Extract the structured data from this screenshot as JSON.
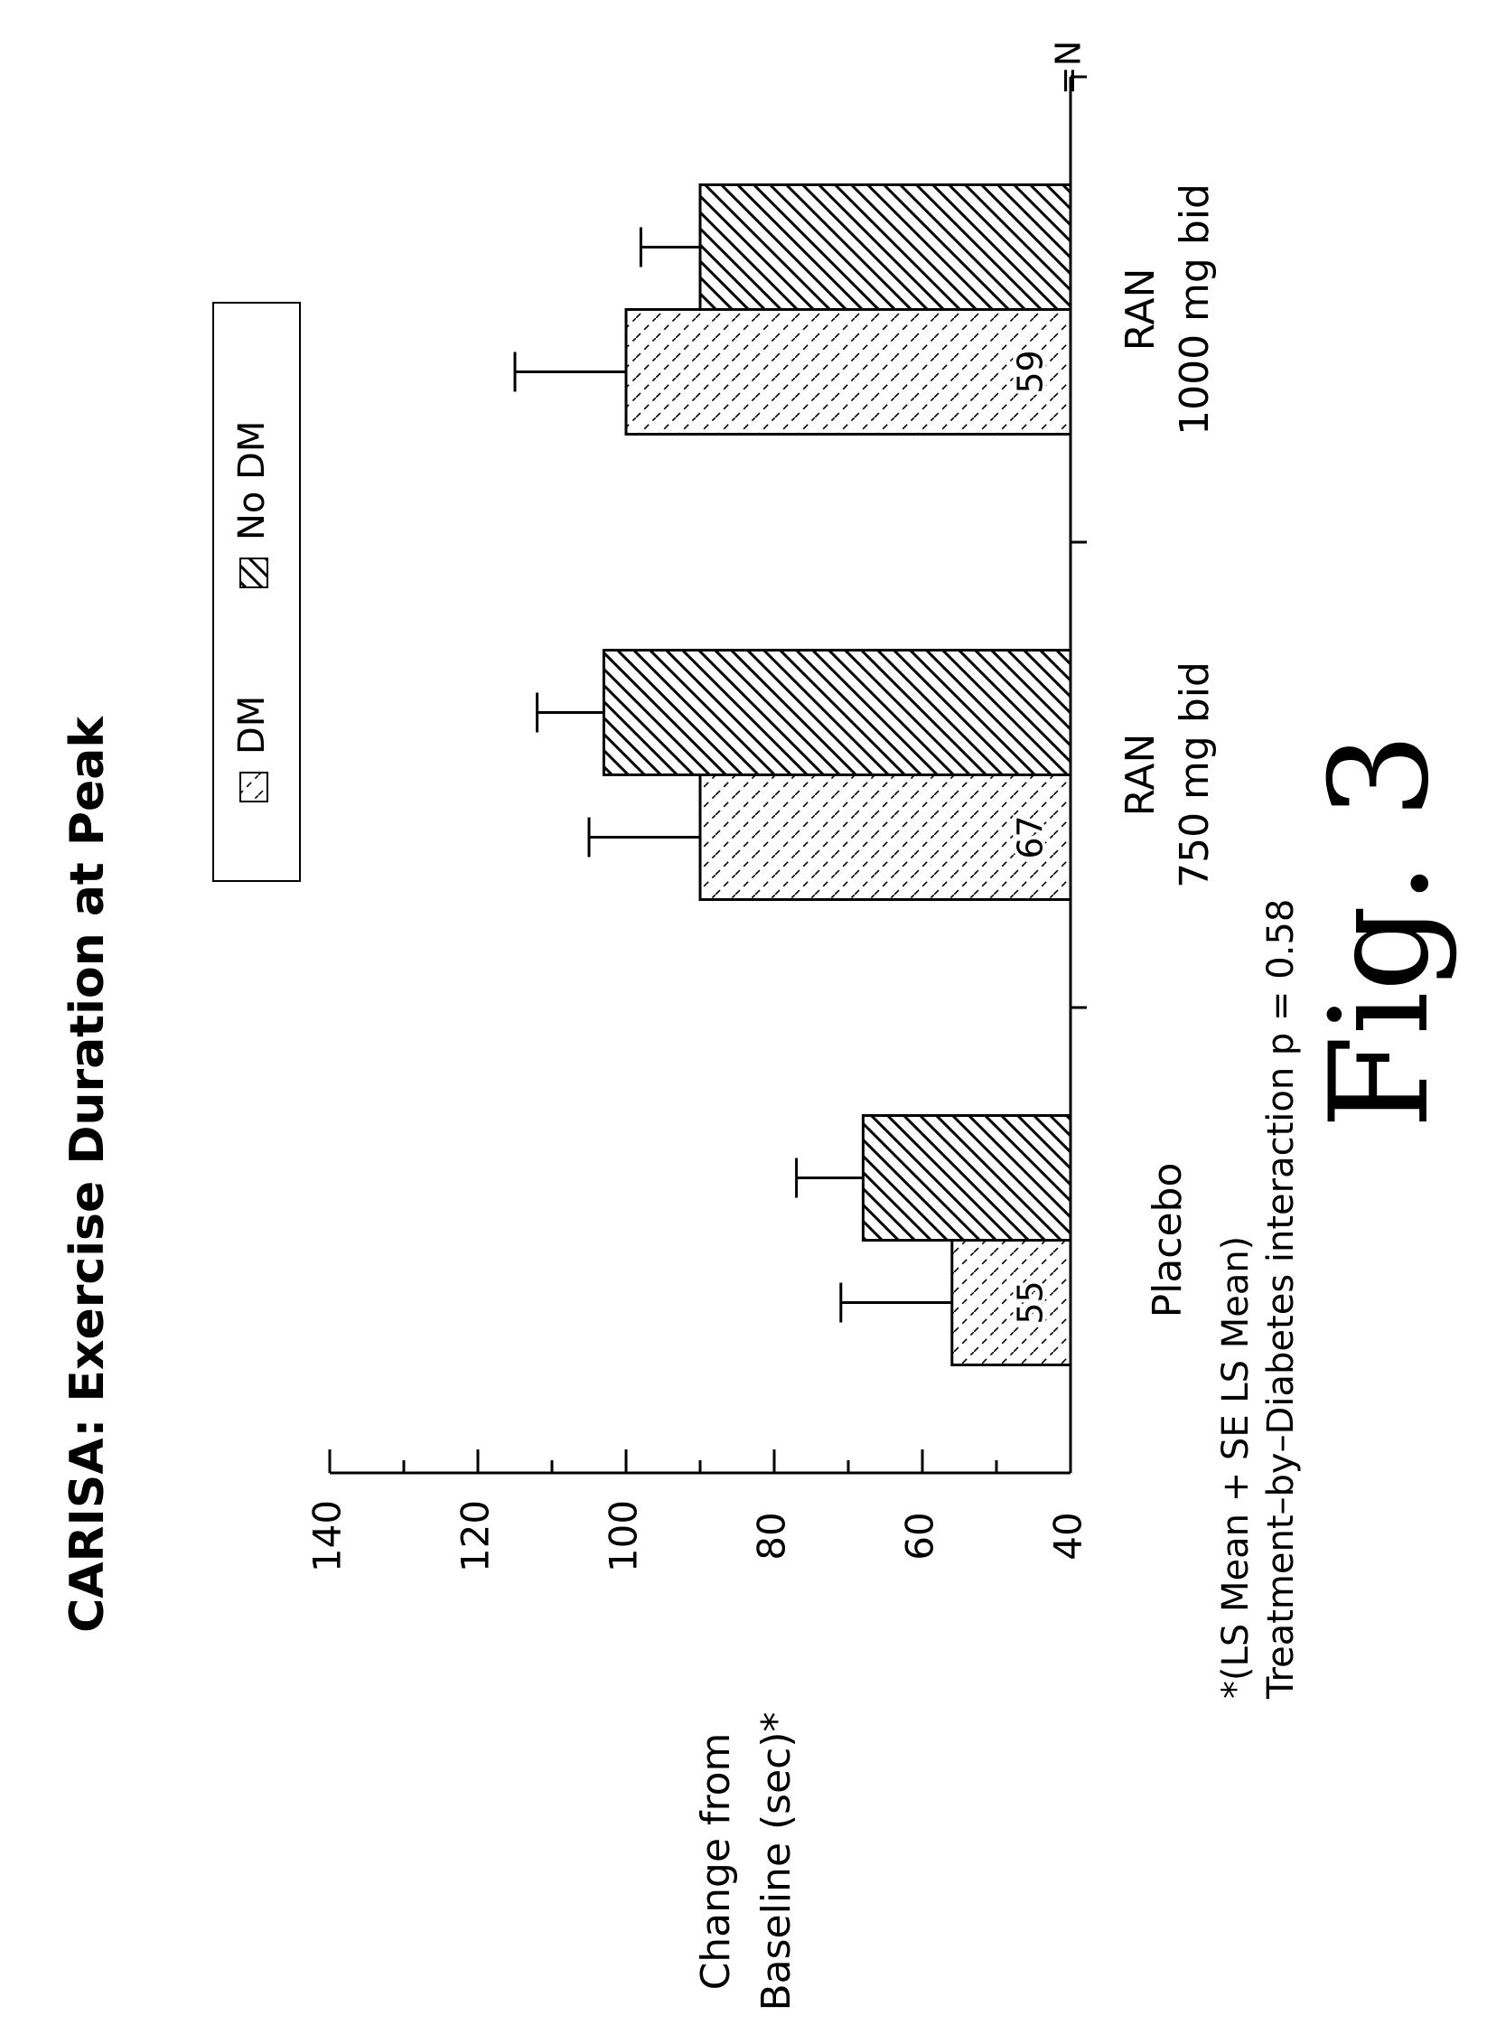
{
  "chart_data": {
    "type": "bar",
    "title": "CARISA: Exercise Duration at Peak",
    "ylabel_line1": "Change from",
    "ylabel_line2": "Baseline (sec)*",
    "ylim": [
      40,
      140
    ],
    "yticks": [
      "140",
      "120",
      "100",
      "80",
      "60",
      "40"
    ],
    "categories": [
      {
        "line1": "Placebo",
        "line2": ""
      },
      {
        "line1": "RAN",
        "line2": "750 mg bid"
      },
      {
        "line1": "RAN",
        "line2": "1000 mg bid"
      }
    ],
    "series": [
      {
        "name": "DM",
        "values": [
          56,
          90,
          100
        ],
        "se": [
          15,
          15,
          15
        ],
        "n": [
          "55",
          "67",
          "59"
        ]
      },
      {
        "name": "No DM",
        "values": [
          68,
          103,
          90
        ],
        "se": [
          9,
          9,
          8
        ]
      }
    ],
    "n_label": "=N",
    "footnote_line1": "*(LS Mean + SE LS Mean)",
    "footnote_line2": "Treatment–by–Diabetes interaction p = 0.58",
    "figure_label": "Fig. 3",
    "legend_position": "top"
  }
}
